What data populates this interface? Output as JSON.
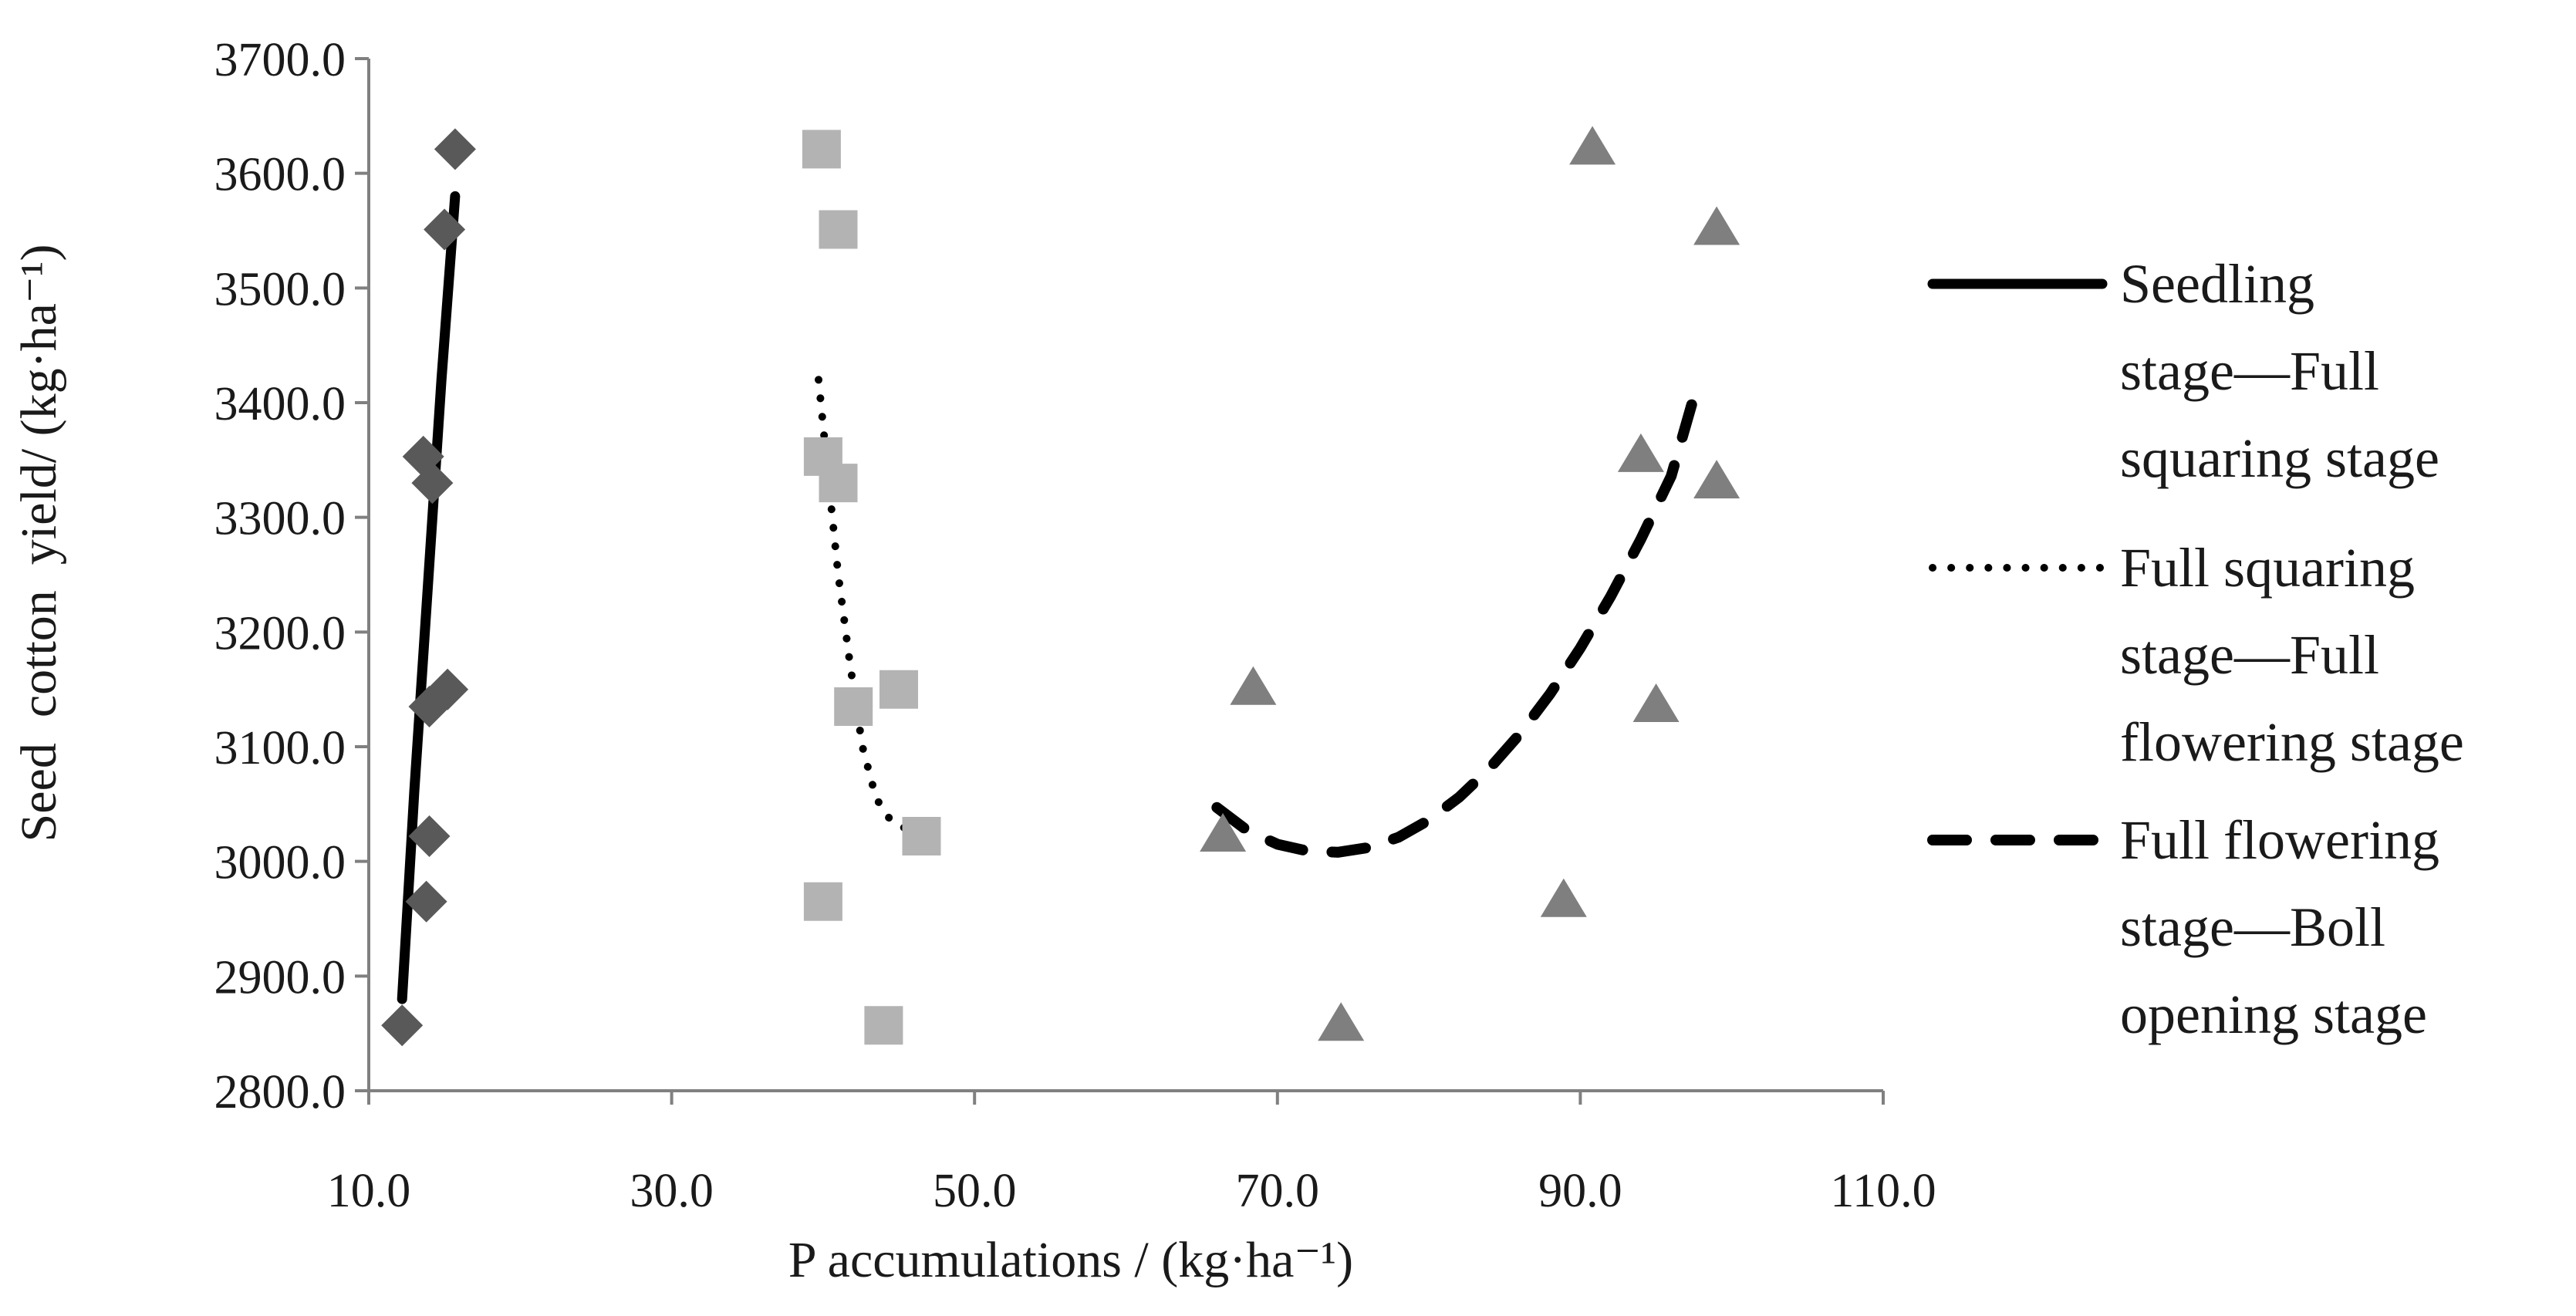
{
  "chart_data": {
    "type": "scatter",
    "xlabel": "P accumulations / (kg·ha⁻¹)",
    "ylabel": "Seed  cotton  yield/ (kg·ha⁻¹)",
    "xlim": [
      10,
      110
    ],
    "ylim": [
      2800,
      3700
    ],
    "x_ticks": [
      10,
      30,
      50,
      70,
      90,
      110
    ],
    "y_ticks": [
      2800,
      2900,
      3000,
      3100,
      3200,
      3300,
      3400,
      3500,
      3600,
      3700
    ],
    "x_tick_labels": [
      "10.0",
      "30.0",
      "50.0",
      "70.0",
      "90.0",
      "110.0"
    ],
    "y_tick_labels": [
      "2800.0",
      "2900.0",
      "3000.0",
      "3100.0",
      "3200.0",
      "3300.0",
      "3400.0",
      "3500.0",
      "3600.0",
      "3700.0"
    ],
    "series": [
      {
        "name": "Seedling stage—Full squaring stage",
        "marker": "diamond",
        "marker_color": "#595959",
        "points": [
          [
            15.7,
            3621
          ],
          [
            15.0,
            3551
          ],
          [
            13.6,
            3353
          ],
          [
            14.2,
            3330
          ],
          [
            15.2,
            3150
          ],
          [
            14.0,
            3135
          ],
          [
            14.0,
            3022
          ],
          [
            13.8,
            2965
          ],
          [
            12.2,
            2857
          ]
        ],
        "trend": {
          "style": "solid",
          "points": [
            [
              12.2,
              2880
            ],
            [
              13.0,
              3060
            ],
            [
              13.9,
              3240
            ],
            [
              14.8,
              3420
            ],
            [
              15.7,
              3580
            ]
          ]
        }
      },
      {
        "name": "Full squaring stage—Full flowering stage",
        "marker": "square",
        "marker_color": "#b3b3b3",
        "points": [
          [
            39.9,
            3621
          ],
          [
            41.0,
            3551
          ],
          [
            40.0,
            3353
          ],
          [
            41.0,
            3330
          ],
          [
            45.0,
            3150
          ],
          [
            42.0,
            3135
          ],
          [
            46.5,
            3022
          ],
          [
            40.0,
            2965
          ],
          [
            44.0,
            2857
          ]
        ],
        "trend": {
          "style": "dotted",
          "points": [
            [
              39.7,
              3420
            ],
            [
              40.3,
              3340
            ],
            [
              41.0,
              3250
            ],
            [
              41.8,
              3170
            ],
            [
              42.6,
              3100
            ],
            [
              43.5,
              3055
            ],
            [
              44.5,
              3035
            ],
            [
              46.0,
              3025
            ]
          ]
        }
      },
      {
        "name": "Full flowering stage—Boll opening stage",
        "marker": "triangle",
        "marker_color": "#7f7f7f",
        "points": [
          [
            90.8,
            3621
          ],
          [
            99.0,
            3551
          ],
          [
            94.0,
            3353
          ],
          [
            99.0,
            3330
          ],
          [
            68.4,
            3150
          ],
          [
            95.0,
            3135
          ],
          [
            66.4,
            3022
          ],
          [
            88.9,
            2965
          ],
          [
            74.2,
            2857
          ]
        ],
        "trend": {
          "style": "dashed",
          "points": [
            [
              66.0,
              3047
            ],
            [
              68.0,
              3027
            ],
            [
              70.0,
              3015
            ],
            [
              72.0,
              3009
            ],
            [
              74.0,
              3008
            ],
            [
              76.0,
              3012
            ],
            [
              78.0,
              3021
            ],
            [
              80.0,
              3036
            ],
            [
              82.0,
              3056
            ],
            [
              84.0,
              3081
            ],
            [
              86.0,
              3111
            ],
            [
              88.0,
              3146
            ],
            [
              90.0,
              3186
            ],
            [
              92.0,
              3231
            ],
            [
              94.0,
              3281
            ],
            [
              96.0,
              3336
            ],
            [
              97.5,
              3405
            ]
          ]
        }
      }
    ],
    "legend": {
      "position": "right",
      "entries": [
        {
          "style": "solid",
          "lines": [
            "Seedling",
            "stage—Full",
            "squaring stage"
          ]
        },
        {
          "style": "dotted",
          "lines": [
            "Full squaring",
            "stage—Full",
            "flowering stage"
          ]
        },
        {
          "style": "dashed",
          "lines": [
            "Full flowering",
            "stage—Boll",
            "opening stage"
          ]
        }
      ]
    }
  }
}
